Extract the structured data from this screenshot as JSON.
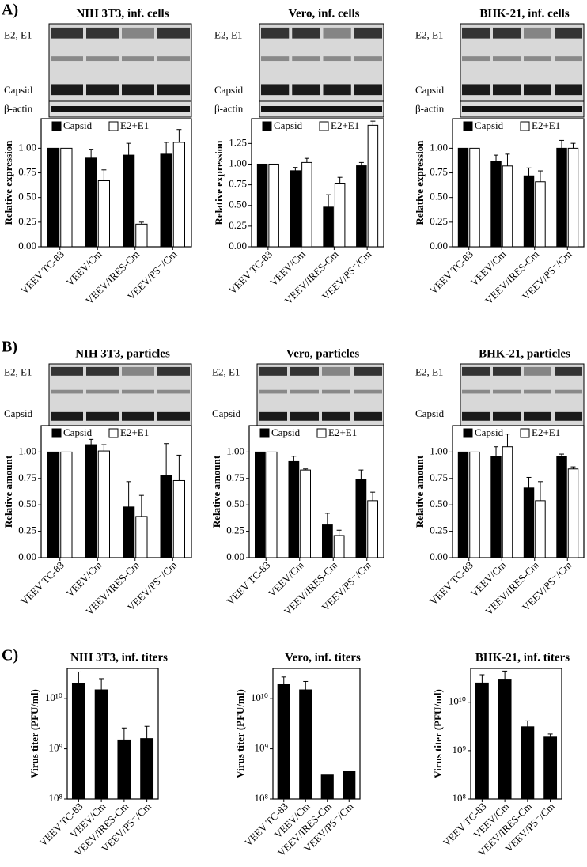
{
  "panel_labels": [
    "A)",
    "B)",
    "C)"
  ],
  "chart_data": [
    {
      "type": "bar",
      "title": "NIH 3T3, inf. cells",
      "blot_labels": [
        "E2, E1",
        "Capsid",
        "β-actin"
      ],
      "y_label": "Relative expression",
      "categories": [
        "VEEV TC-83",
        "VEEV/Cm",
        "VEEV/IRES-Cm",
        "VEEV/PS⁻/Cm"
      ],
      "series": [
        {
          "name": "Capsid",
          "color": "#000000",
          "values": [
            1.0,
            0.9,
            0.93,
            0.94
          ],
          "errors": [
            null,
            0.09,
            0.12,
            0.12
          ]
        },
        {
          "name": "E2+E1",
          "color": "#ffffff",
          "values": [
            1.0,
            0.67,
            0.23,
            1.06
          ],
          "errors": [
            null,
            0.11,
            0.02,
            0.13
          ]
        }
      ],
      "ylim": [
        0,
        1.3
      ],
      "yticks": [
        {
          "value": 0,
          "label": "0.00"
        },
        {
          "value": 0.25,
          "label": "0.25"
        },
        {
          "value": 0.5,
          "label": "0.50"
        },
        {
          "value": 0.75,
          "label": "0.75"
        },
        {
          "value": 1,
          "label": "1.00"
        }
      ]
    },
    {
      "type": "bar",
      "title": "Vero, inf. cells",
      "blot_labels": [
        "E2, E1",
        "Capsid",
        "β-actin"
      ],
      "y_label": "Relative expression",
      "categories": [
        "VEEV TC-83",
        "VEEV/Cm",
        "VEEV/IRES-Cm",
        "VEEV/PS⁻/Cm"
      ],
      "series": [
        {
          "name": "Capsid",
          "color": "#000000",
          "values": [
            1.0,
            0.92,
            0.48,
            0.98
          ],
          "errors": [
            null,
            0.04,
            0.15,
            0.04
          ]
        },
        {
          "name": "E2+E1",
          "color": "#ffffff",
          "values": [
            1.0,
            1.02,
            0.77,
            1.47
          ],
          "errors": [
            null,
            0.05,
            0.07,
            0.05
          ]
        }
      ],
      "ylim": [
        0,
        1.55
      ],
      "yticks": [
        {
          "value": 0,
          "label": "0.00"
        },
        {
          "value": 0.25,
          "label": "0.25"
        },
        {
          "value": 0.5,
          "label": "0.50"
        },
        {
          "value": 0.75,
          "label": "0.75"
        },
        {
          "value": 1,
          "label": "1.00"
        },
        {
          "value": 1.25,
          "label": "1.25"
        }
      ]
    },
    {
      "type": "bar",
      "title": "BHK-21, inf. cells",
      "blot_labels": [
        "E2, E1",
        "Capsid",
        "β-actin"
      ],
      "y_label": "Relative expression",
      "categories": [
        "VEEV TC-83",
        "VEEV/Cm",
        "VEEV/IRES-Cm",
        "VEEV/PS⁻/Cm"
      ],
      "series": [
        {
          "name": "Capsid",
          "color": "#000000",
          "values": [
            1.0,
            0.87,
            0.72,
            1.0
          ],
          "errors": [
            null,
            0.06,
            0.08,
            0.08
          ]
        },
        {
          "name": "E2+E1",
          "color": "#ffffff",
          "values": [
            1.0,
            0.82,
            0.66,
            1.0
          ],
          "errors": [
            null,
            0.12,
            0.11,
            0.05
          ]
        }
      ],
      "ylim": [
        0,
        1.3
      ],
      "yticks": [
        {
          "value": 0,
          "label": "0.00"
        },
        {
          "value": 0.25,
          "label": "0.25"
        },
        {
          "value": 0.5,
          "label": "0.50"
        },
        {
          "value": 0.75,
          "label": "0.75"
        },
        {
          "value": 1,
          "label": "1.00"
        }
      ]
    },
    {
      "type": "bar",
      "title": "NIH 3T3, particles",
      "blot_labels": [
        "E2, E1",
        "Capsid"
      ],
      "y_label": "Relative amount",
      "categories": [
        "VEEV TC-83",
        "VEEV/Cm",
        "VEEV/IRES-Cm",
        "VEEV/PS⁻/Cm"
      ],
      "series": [
        {
          "name": "Capsid",
          "color": "#000000",
          "values": [
            1.0,
            1.07,
            0.48,
            0.78
          ],
          "errors": [
            null,
            0.05,
            0.24,
            0.3
          ]
        },
        {
          "name": "E2+E1",
          "color": "#ffffff",
          "values": [
            1.0,
            1.01,
            0.39,
            0.73
          ],
          "errors": [
            null,
            0.06,
            0.2,
            0.24
          ]
        }
      ],
      "ylim": [
        0,
        1.25
      ],
      "yticks": [
        {
          "value": 0,
          "label": "0.00"
        },
        {
          "value": 0.25,
          "label": "0.25"
        },
        {
          "value": 0.5,
          "label": "0.50"
        },
        {
          "value": 0.75,
          "label": "0.75"
        },
        {
          "value": 1,
          "label": "1.00"
        }
      ]
    },
    {
      "type": "bar",
      "title": "Vero, particles",
      "blot_labels": [
        "E2, E1",
        "Capsid"
      ],
      "y_label": "Relative amount",
      "categories": [
        "VEEV TC-83",
        "VEEV/Cm",
        "VEEV/IRES-Cm",
        "VEEV/PS⁻/Cm"
      ],
      "series": [
        {
          "name": "Capsid",
          "color": "#000000",
          "values": [
            1.0,
            0.91,
            0.31,
            0.74
          ],
          "errors": [
            null,
            0.05,
            0.11,
            0.09
          ]
        },
        {
          "name": "E2+E1",
          "color": "#ffffff",
          "values": [
            1.0,
            0.83,
            0.21,
            0.54
          ],
          "errors": [
            null,
            0.01,
            0.05,
            0.08
          ]
        }
      ],
      "ylim": [
        0,
        1.25
      ],
      "yticks": [
        {
          "value": 0,
          "label": "0.00"
        },
        {
          "value": 0.25,
          "label": "0.25"
        },
        {
          "value": 0.5,
          "label": "0.50"
        },
        {
          "value": 0.75,
          "label": "0.75"
        },
        {
          "value": 1,
          "label": "1.00"
        }
      ]
    },
    {
      "type": "bar",
      "title": "BHK-21, particles",
      "blot_labels": [
        "E2, E1",
        "Capsid"
      ],
      "y_label": "Relative amount",
      "categories": [
        "VEEV TC-83",
        "VEEV/Cm",
        "VEEV/IRES-Cm",
        "VEEV/PS⁻/Cm"
      ],
      "series": [
        {
          "name": "Capsid",
          "color": "#000000",
          "values": [
            1.0,
            0.96,
            0.66,
            0.96
          ],
          "errors": [
            null,
            0.09,
            0.1,
            0.02
          ]
        },
        {
          "name": "E2+E1",
          "color": "#ffffff",
          "values": [
            1.0,
            1.05,
            0.54,
            0.84
          ],
          "errors": [
            null,
            0.12,
            0.18,
            0.02
          ]
        }
      ],
      "ylim": [
        0,
        1.25
      ],
      "yticks": [
        {
          "value": 0,
          "label": "0.00"
        },
        {
          "value": 0.25,
          "label": "0.25"
        },
        {
          "value": 0.5,
          "label": "0.50"
        },
        {
          "value": 0.75,
          "label": "0.75"
        },
        {
          "value": 1,
          "label": "1.00"
        }
      ]
    },
    {
      "type": "bar",
      "title": "NIH 3T3, inf. titers",
      "y_label": "Virus titer (PFU/ml)",
      "log_scale": true,
      "categories": [
        "VEEV TC-83",
        "VEEV/Cm",
        "VEEV/IRES-Cm",
        "VEEV/PS⁻/Cm"
      ],
      "series": [
        {
          "color": "#000000",
          "values": [
            20000000000,
            15000000000,
            1500000000,
            1600000000
          ],
          "errors": [
            14000000000,
            10000000000,
            1100000000,
            1200000000
          ]
        }
      ],
      "ylim": [
        100000000,
        40000000000
      ],
      "yticks": [
        {
          "value": 100000000,
          "label": "10⁸"
        },
        {
          "value": 1000000000,
          "label": "10⁹"
        },
        {
          "value": 10000000000,
          "label": "10¹⁰"
        }
      ]
    },
    {
      "type": "bar",
      "title": "Vero, inf. titers",
      "y_label": "Virus titer (PFU/ml)",
      "log_scale": true,
      "categories": [
        "VEEV TC-83",
        "VEEV/Cm",
        "VEEV/IRES-Cm",
        "VEEV/PS⁻/Cm"
      ],
      "series": [
        {
          "color": "#000000",
          "values": [
            19000000000,
            15000000000,
            300000000,
            350000000
          ],
          "errors": [
            8000000000,
            7000000000,
            null,
            null
          ]
        }
      ],
      "ylim": [
        100000000,
        40000000000
      ],
      "yticks": [
        {
          "value": 100000000,
          "label": "10⁸"
        },
        {
          "value": 1000000000,
          "label": "10⁹"
        },
        {
          "value": 10000000000,
          "label": "10¹⁰"
        }
      ]
    },
    {
      "type": "bar",
      "title": "BHK-21, inf. titers",
      "y_label": "Virus titer (PFU/ml)",
      "log_scale": true,
      "categories": [
        "VEEV TC-83",
        "VEEV/Cm",
        "VEEV/IRES-Cm",
        "VEEV/PS⁻/Cm"
      ],
      "series": [
        {
          "color": "#000000",
          "values": [
            25000000000,
            30000000000,
            3100000000,
            1900000000
          ],
          "errors": [
            12000000000,
            14000000000,
            1000000000,
            300000000
          ]
        }
      ],
      "ylim": [
        100000000,
        50000000000
      ],
      "yticks": [
        {
          "value": 100000000,
          "label": "10⁸"
        },
        {
          "value": 1000000000,
          "label": "10⁹"
        },
        {
          "value": 10000000000,
          "label": "10¹⁰"
        }
      ]
    }
  ]
}
